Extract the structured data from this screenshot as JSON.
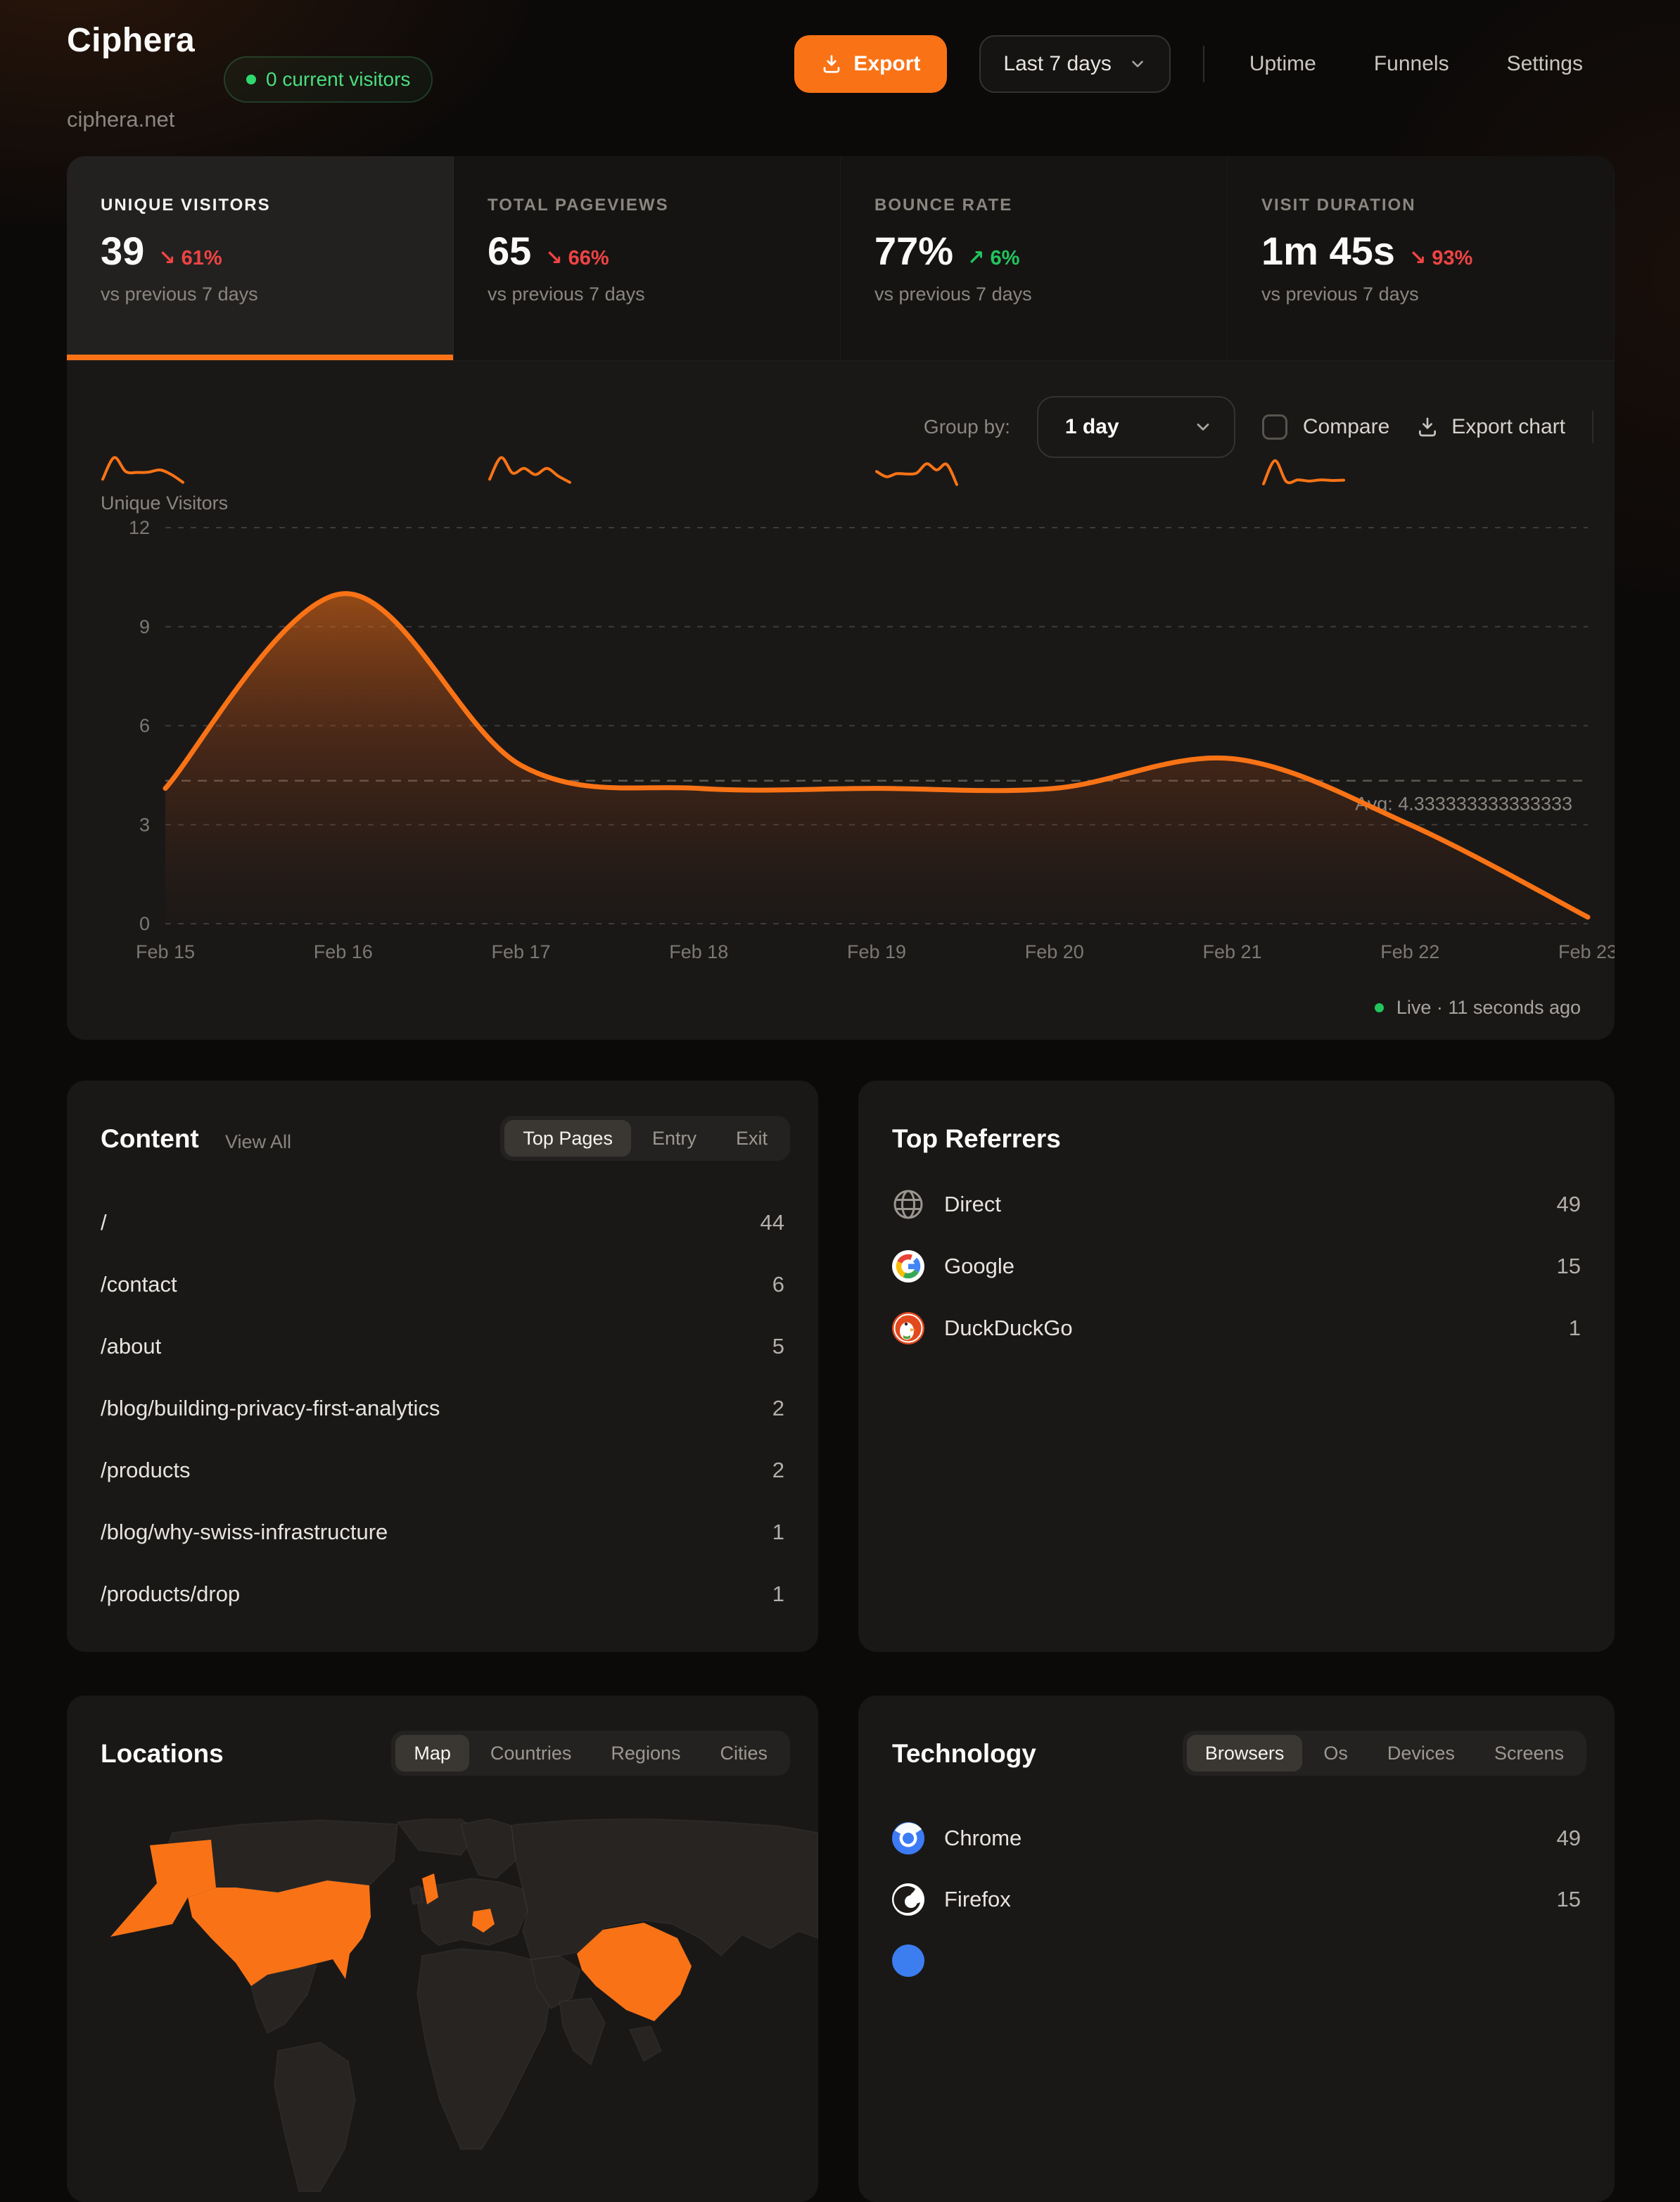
{
  "colors": {
    "accent": "#f97316",
    "negative": "#ef4444",
    "positive": "#22c55e",
    "card_bg": "#1a1817",
    "map_land": "#272422"
  },
  "header": {
    "site_name": "Ciphera",
    "domain": "ciphera.net",
    "current_visitors_badge": "0 current visitors",
    "export_button": "Export",
    "date_range": "Last 7 days",
    "nav_items": [
      "Uptime",
      "Funnels",
      "Settings"
    ]
  },
  "stats": {
    "compare_caption": "vs previous 7 days",
    "tiles": [
      {
        "label": "UNIQUE VISITORS",
        "value": "39",
        "delta": "61%",
        "direction": "down",
        "selected": true,
        "spark": [
          2,
          9,
          4.5,
          4.2,
          4.3,
          5,
          3.5,
          1
        ]
      },
      {
        "label": "TOTAL PAGEVIEWS",
        "value": "65",
        "delta": "66%",
        "direction": "down",
        "selected": false,
        "spark": [
          2,
          9,
          4,
          5.5,
          3.5,
          5.5,
          3,
          1
        ]
      },
      {
        "label": "BOUNCE RATE",
        "value": "77%",
        "delta": "6%",
        "direction": "up",
        "selected": false,
        "spark": [
          4.5,
          2.8,
          3.8,
          3.7,
          4,
          7,
          5,
          6.8,
          0.3
        ]
      },
      {
        "label": "VISIT DURATION",
        "value": "1m 45s",
        "delta": "93%",
        "direction": "down",
        "selected": false,
        "spark": [
          0.5,
          8,
          1.2,
          1.8,
          1.4,
          1.8,
          1.6,
          1.7
        ]
      }
    ]
  },
  "chart_controls": {
    "group_by_label": "Group by:",
    "group_by_value": "1 day",
    "compare_label": "Compare",
    "export_chart_label": "Export chart"
  },
  "chart_data": {
    "type": "area",
    "title": "Unique Visitors",
    "x": [
      "Feb 15",
      "Feb 16",
      "Feb 17",
      "Feb 18",
      "Feb 19",
      "Feb 20",
      "Feb 21",
      "Feb 22",
      "Feb 23"
    ],
    "series": [
      {
        "name": "Unique Visitors",
        "values": [
          4.1,
          10,
          4.8,
          4.1,
          4.1,
          4.1,
          5,
          3,
          0.2
        ]
      }
    ],
    "ylim": [
      0,
      12
    ],
    "yticks": [
      0,
      3,
      6,
      9,
      12
    ],
    "avg": 4.333333333333333,
    "avg_label": "Avg: 4.333333333333333",
    "grid": "dashed horizontal",
    "legend": "none",
    "line_color": "#f97316"
  },
  "live_status": {
    "label": "Live · 11 seconds ago"
  },
  "content_card": {
    "title": "Content",
    "view_all": "View All",
    "tabs": [
      "Top Pages",
      "Entry",
      "Exit"
    ],
    "active_tab": "Top Pages",
    "rows": [
      {
        "path": "/",
        "count": "44"
      },
      {
        "path": "/contact",
        "count": "6"
      },
      {
        "path": "/about",
        "count": "5"
      },
      {
        "path": "/blog/building-privacy-first-analytics",
        "count": "2"
      },
      {
        "path": "/products",
        "count": "2"
      },
      {
        "path": "/blog/why-swiss-infrastructure",
        "count": "1"
      },
      {
        "path": "/products/drop",
        "count": "1"
      }
    ]
  },
  "referrers_card": {
    "title": "Top Referrers",
    "rows": [
      {
        "name": "Direct",
        "count": "49",
        "icon": "globe-icon"
      },
      {
        "name": "Google",
        "count": "15",
        "icon": "google-icon"
      },
      {
        "name": "DuckDuckGo",
        "count": "1",
        "icon": "duckduckgo-icon"
      }
    ]
  },
  "locations_card": {
    "title": "Locations",
    "tabs": [
      "Map",
      "Countries",
      "Regions",
      "Cities"
    ],
    "active_tab": "Map",
    "highlighted_regions": [
      "United States",
      "Alaska",
      "United Kingdom",
      "Romania",
      "China"
    ]
  },
  "technology_card": {
    "title": "Technology",
    "tabs": [
      "Browsers",
      "Os",
      "Devices",
      "Screens"
    ],
    "active_tab": "Browsers",
    "rows": [
      {
        "name": "Chrome",
        "count": "49",
        "icon": "chrome-icon"
      },
      {
        "name": "Firefox",
        "count": "15",
        "icon": "firefox-icon"
      }
    ]
  }
}
